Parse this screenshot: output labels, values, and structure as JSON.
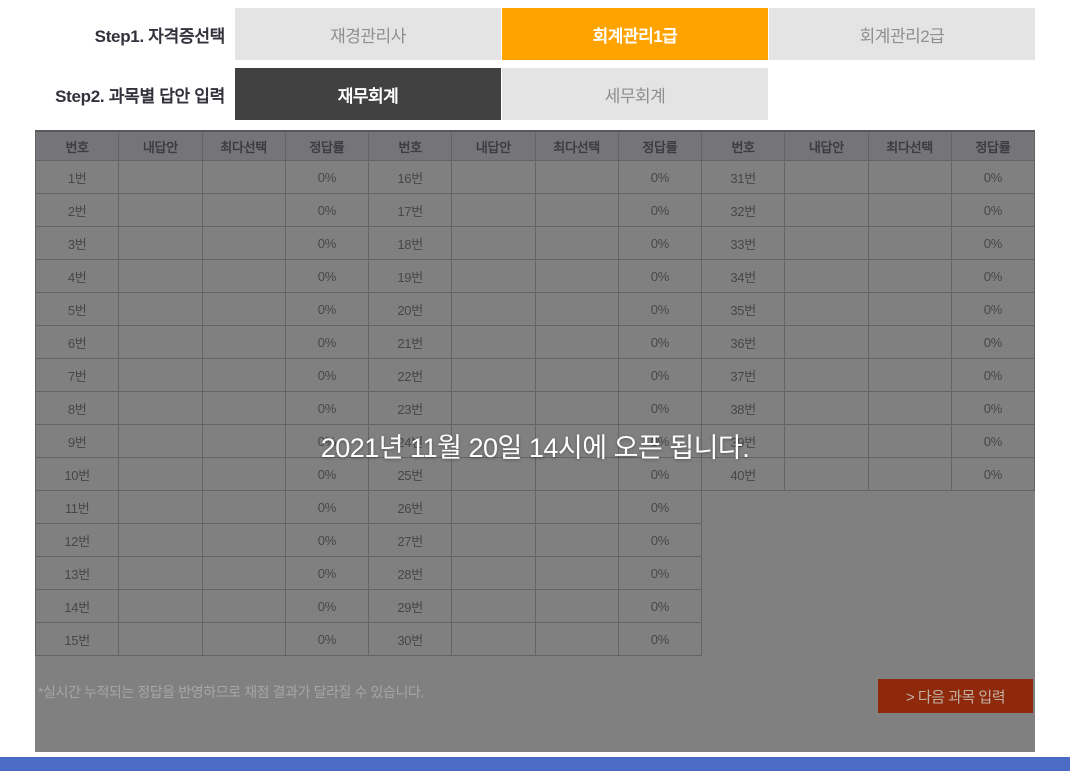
{
  "steps": {
    "step1_label": "Step1. 자격증선택",
    "step2_label": "Step2. 과목별 답안 입력"
  },
  "cert_tabs": [
    {
      "label": "재경관리사",
      "active": false
    },
    {
      "label": "회계관리1급",
      "active": true
    },
    {
      "label": "회계관리2급",
      "active": false
    }
  ],
  "subject_tabs": [
    {
      "label": "재무회계",
      "active": true
    },
    {
      "label": "세무회계",
      "active": false
    }
  ],
  "table": {
    "headers": [
      "번호",
      "내답안",
      "최다선택",
      "정답률"
    ],
    "groups": [
      {
        "rows": [
          {
            "no": "1번",
            "my": "",
            "top": "",
            "rate": "0%"
          },
          {
            "no": "2번",
            "my": "",
            "top": "",
            "rate": "0%"
          },
          {
            "no": "3번",
            "my": "",
            "top": "",
            "rate": "0%"
          },
          {
            "no": "4번",
            "my": "",
            "top": "",
            "rate": "0%"
          },
          {
            "no": "5번",
            "my": "",
            "top": "",
            "rate": "0%"
          },
          {
            "no": "6번",
            "my": "",
            "top": "",
            "rate": "0%"
          },
          {
            "no": "7번",
            "my": "",
            "top": "",
            "rate": "0%"
          },
          {
            "no": "8번",
            "my": "",
            "top": "",
            "rate": "0%"
          },
          {
            "no": "9번",
            "my": "",
            "top": "",
            "rate": "0%"
          },
          {
            "no": "10번",
            "my": "",
            "top": "",
            "rate": "0%"
          },
          {
            "no": "11번",
            "my": "",
            "top": "",
            "rate": "0%"
          },
          {
            "no": "12번",
            "my": "",
            "top": "",
            "rate": "0%"
          },
          {
            "no": "13번",
            "my": "",
            "top": "",
            "rate": "0%"
          },
          {
            "no": "14번",
            "my": "",
            "top": "",
            "rate": "0%"
          },
          {
            "no": "15번",
            "my": "",
            "top": "",
            "rate": "0%"
          }
        ]
      },
      {
        "rows": [
          {
            "no": "16번",
            "my": "",
            "top": "",
            "rate": "0%"
          },
          {
            "no": "17번",
            "my": "",
            "top": "",
            "rate": "0%"
          },
          {
            "no": "18번",
            "my": "",
            "top": "",
            "rate": "0%"
          },
          {
            "no": "19번",
            "my": "",
            "top": "",
            "rate": "0%"
          },
          {
            "no": "20번",
            "my": "",
            "top": "",
            "rate": "0%"
          },
          {
            "no": "21번",
            "my": "",
            "top": "",
            "rate": "0%"
          },
          {
            "no": "22번",
            "my": "",
            "top": "",
            "rate": "0%"
          },
          {
            "no": "23번",
            "my": "",
            "top": "",
            "rate": "0%"
          },
          {
            "no": "24번",
            "my": "",
            "top": "",
            "rate": "0%"
          },
          {
            "no": "25번",
            "my": "",
            "top": "",
            "rate": "0%"
          },
          {
            "no": "26번",
            "my": "",
            "top": "",
            "rate": "0%"
          },
          {
            "no": "27번",
            "my": "",
            "top": "",
            "rate": "0%"
          },
          {
            "no": "28번",
            "my": "",
            "top": "",
            "rate": "0%"
          },
          {
            "no": "29번",
            "my": "",
            "top": "",
            "rate": "0%"
          },
          {
            "no": "30번",
            "my": "",
            "top": "",
            "rate": "0%"
          }
        ]
      },
      {
        "rows": [
          {
            "no": "31번",
            "my": "",
            "top": "",
            "rate": "0%"
          },
          {
            "no": "32번",
            "my": "",
            "top": "",
            "rate": "0%"
          },
          {
            "no": "33번",
            "my": "",
            "top": "",
            "rate": "0%"
          },
          {
            "no": "34번",
            "my": "",
            "top": "",
            "rate": "0%"
          },
          {
            "no": "35번",
            "my": "",
            "top": "",
            "rate": "0%"
          },
          {
            "no": "36번",
            "my": "",
            "top": "",
            "rate": "0%"
          },
          {
            "no": "37번",
            "my": "",
            "top": "",
            "rate": "0%"
          },
          {
            "no": "38번",
            "my": "",
            "top": "",
            "rate": "0%"
          },
          {
            "no": "39번",
            "my": "",
            "top": "",
            "rate": "0%"
          },
          {
            "no": "40번",
            "my": "",
            "top": "",
            "rate": "0%"
          }
        ]
      }
    ]
  },
  "overlay": {
    "message": "2021년 11월 20일 14시에 오픈 됩니다."
  },
  "footnote": "*실시간 누적되는 정답을 반영하므로 채점 결과가 달라질 수 있습니다.",
  "next_button": "> 다음 과목 입력",
  "colors": {
    "accent_orange": "#ffa301",
    "active_dark_tab": "#414141",
    "dim_panel": "#808080",
    "next_button_bg": "#8e2a0b",
    "bottom_bar_blue": "#4c6bc5"
  }
}
